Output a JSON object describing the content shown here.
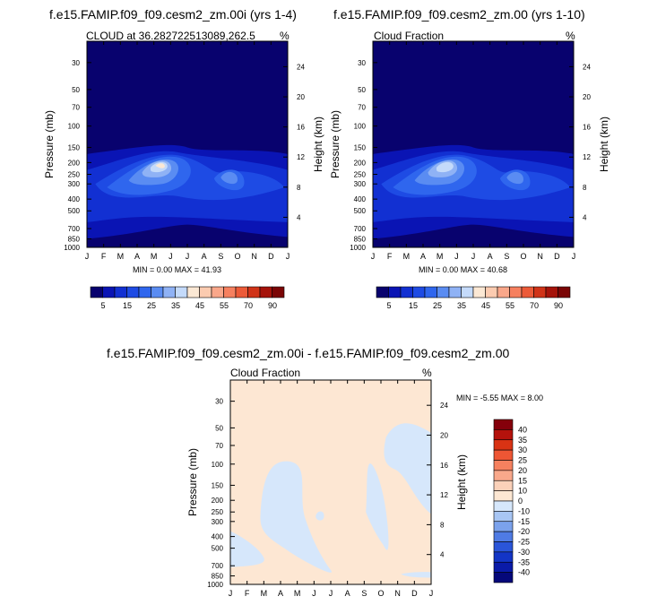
{
  "panels": [
    {
      "title": "f.e15.FAMIP.f09_f09.cesm2_zm.00i (yrs 1-4)",
      "left_label": "CLOUD at 36.282722513089,262.5",
      "unit": "%",
      "stats": "MIN =   0.00 MAX =  41.93",
      "ylabel": "Pressure (mb)",
      "ylabel_right": "Height (km)"
    },
    {
      "title": "f.e15.FAMIP.f09_f09.cesm2_zm.00 (yrs 1-10)",
      "left_label": "Cloud Fraction",
      "unit": "%",
      "stats": "MIN =   0.00 MAX =  40.68",
      "ylabel": "Pressure (mb)",
      "ylabel_right": "Height (km)"
    },
    {
      "title": "f.e15.FAMIP.f09_f09.cesm2_zm.00i - f.e15.FAMIP.f09_f09.cesm2_zm.00",
      "left_label": "Cloud Fraction",
      "unit": "%",
      "stats": "MIN =  -5.55 MAX =   8.00",
      "ylabel": "Pressure (mb)",
      "ylabel_right": "Height (km)"
    }
  ],
  "chart_data": [
    {
      "type": "heatmap",
      "title": "f.e15.FAMIP.f09_f09.cesm2_zm.00i (yrs 1-4)",
      "xlabel": "",
      "ylabel": "Pressure (mb)",
      "y2label": "Height (km)",
      "x_ticks": [
        "J",
        "F",
        "M",
        "A",
        "M",
        "J",
        "J",
        "A",
        "S",
        "O",
        "N",
        "D",
        "J"
      ],
      "y_ticks": [
        30,
        50,
        70,
        100,
        150,
        200,
        250,
        300,
        400,
        500,
        700,
        850,
        1000
      ],
      "y_ticks_right": [
        24,
        20,
        16,
        12,
        8,
        4
      ],
      "y_scale": "log",
      "ylim": [
        1000,
        20
      ],
      "min": 0.0,
      "max": 41.93,
      "colorbar": [
        "5",
        "15",
        "25",
        "35",
        "45",
        "55",
        "70",
        "90"
      ]
    },
    {
      "type": "heatmap",
      "title": "f.e15.FAMIP.f09_f09.cesm2_zm.00 (yrs 1-10)",
      "xlabel": "",
      "ylabel": "Pressure (mb)",
      "y2label": "Height (km)",
      "x_ticks": [
        "J",
        "F",
        "M",
        "A",
        "M",
        "J",
        "J",
        "A",
        "S",
        "O",
        "N",
        "D",
        "J"
      ],
      "y_ticks": [
        30,
        50,
        70,
        100,
        150,
        200,
        250,
        300,
        400,
        500,
        700,
        850,
        1000
      ],
      "y_ticks_right": [
        24,
        20,
        16,
        12,
        8,
        4
      ],
      "y_scale": "log",
      "ylim": [
        1000,
        20
      ],
      "min": 0.0,
      "max": 40.68,
      "colorbar": [
        "5",
        "15",
        "25",
        "35",
        "45",
        "55",
        "70",
        "90"
      ]
    },
    {
      "type": "heatmap",
      "title": "f.e15.FAMIP.f09_f09.cesm2_zm.00i - f.e15.FAMIP.f09_f09.cesm2_zm.00",
      "xlabel": "",
      "ylabel": "Pressure (mb)",
      "y2label": "Height (km)",
      "x_ticks": [
        "J",
        "F",
        "M",
        "A",
        "M",
        "J",
        "J",
        "A",
        "S",
        "O",
        "N",
        "D",
        "J"
      ],
      "y_ticks": [
        30,
        50,
        70,
        100,
        150,
        200,
        250,
        300,
        400,
        500,
        700,
        850,
        1000
      ],
      "y_ticks_right": [
        24,
        20,
        16,
        12,
        8,
        4
      ],
      "y_scale": "log",
      "ylim": [
        1000,
        20
      ],
      "min": -5.55,
      "max": 8.0,
      "colorbar": [
        "40",
        "35",
        "30",
        "25",
        "20",
        "15",
        "10",
        "0",
        "-10",
        "-15",
        "-20",
        "-25",
        "-30",
        "-35",
        "-40"
      ]
    }
  ],
  "colors": {
    "seq": [
      "#08026e",
      "#0a14b4",
      "#1230d2",
      "#1e4be4",
      "#2f66ee",
      "#5a8cf2",
      "#8fb2f5",
      "#c4dafa",
      "#fbe8d4",
      "#fbcbb0",
      "#f9a78a",
      "#f6805f",
      "#ec5a38",
      "#d03318",
      "#a5130a",
      "#7a0505"
    ],
    "div": [
      "#85000b",
      "#b5120c",
      "#d93314",
      "#ee5634",
      "#f6815f",
      "#f9a88b",
      "#fbd1b9",
      "#fde7d3",
      "#d6e7fb",
      "#a8c6f4",
      "#7ba2ec",
      "#4f7be4",
      "#2a55d9",
      "#1335c6",
      "#0a1ba8",
      "#05087a"
    ],
    "zero": "#fde7d3",
    "neg": "#d6e7fb"
  }
}
